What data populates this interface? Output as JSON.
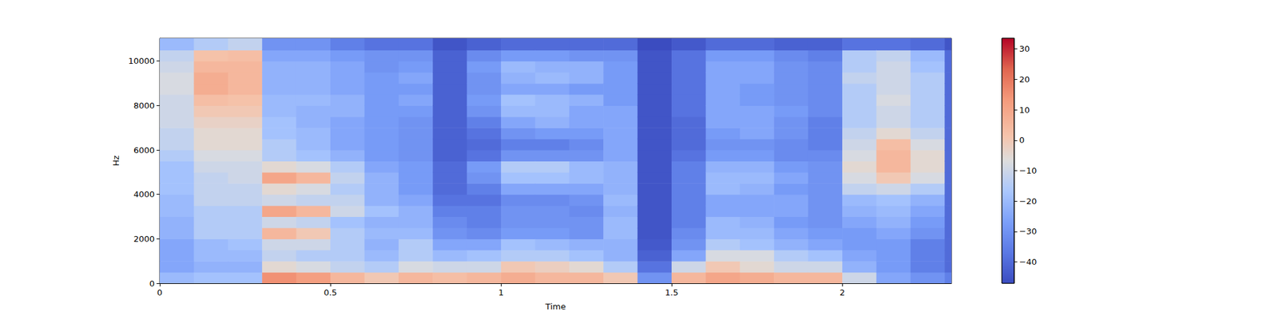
{
  "chart_data": {
    "type": "spectrogram",
    "xlabel": "Time",
    "ylabel": "Hz",
    "xlim": [
      0,
      2.32
    ],
    "xticks": [
      0,
      0.5,
      1,
      1.5,
      2
    ],
    "ylim": [
      0,
      11025
    ],
    "yticks": [
      0,
      2000,
      4000,
      6000,
      8000,
      10000
    ],
    "grid": false,
    "color": "coolwarm",
    "time_edges": [
      0,
      0.1,
      0.2,
      0.3,
      0.4,
      0.5,
      0.6,
      0.7,
      0.8,
      0.9,
      1,
      1.1,
      1.2,
      1.3,
      1.4,
      1.5,
      1.6,
      1.7,
      1.8,
      1.9,
      2,
      2.1,
      2.2,
      2.3,
      2.32
    ],
    "freq_edges": [
      0,
      500,
      1000,
      1500,
      2000,
      2500,
      3000,
      3500,
      4000,
      4500,
      5000,
      5500,
      6000,
      6500,
      7000,
      7500,
      8000,
      8500,
      9000,
      9500,
      10000,
      10500,
      11025
    ],
    "values": [
      [
        -20,
        -25,
        -25,
        -25,
        -22,
        -22,
        -20,
        -20,
        -18,
        -18,
        -18,
        -15,
        -12,
        -12,
        -10,
        -10,
        -10,
        -8,
        -8,
        -10,
        -12,
        -20
      ],
      [
        -18,
        -22,
        -20,
        -20,
        -15,
        -15,
        -15,
        -12,
        -12,
        -12,
        -10,
        -8,
        -5,
        -5,
        -3,
        0,
        3,
        8,
        8,
        5,
        2,
        -15
      ],
      [
        -18,
        -22,
        -20,
        -18,
        -15,
        -15,
        -15,
        -12,
        -12,
        -10,
        -10,
        -8,
        -5,
        -5,
        -3,
        0,
        2,
        5,
        5,
        5,
        3,
        -12
      ],
      [
        15,
        -5,
        -12,
        -10,
        5,
        -10,
        10,
        -10,
        -5,
        10,
        -5,
        -15,
        -15,
        -18,
        -18,
        -20,
        -20,
        -22,
        -22,
        -22,
        -25,
        -30
      ],
      [
        12,
        -8,
        -15,
        -10,
        0,
        -12,
        5,
        -12,
        -8,
        5,
        -8,
        -18,
        -20,
        -20,
        -22,
        -22,
        -20,
        -22,
        -22,
        -22,
        -25,
        -30
      ],
      [
        5,
        -12,
        -15,
        -15,
        -15,
        -18,
        -10,
        -12,
        -15,
        -12,
        -15,
        -22,
        -25,
        -25,
        -25,
        -22,
        -22,
        -25,
        -25,
        -25,
        -28,
        -35
      ],
      [
        0,
        -15,
        -20,
        -22,
        -20,
        -22,
        -18,
        -22,
        -22,
        -22,
        -25,
        -28,
        -28,
        -28,
        -28,
        -28,
        -28,
        -28,
        -28,
        -30,
        -30,
        -38
      ],
      [
        5,
        -8,
        -15,
        -15,
        -20,
        -22,
        -22,
        -25,
        -28,
        -28,
        -28,
        -30,
        -30,
        -30,
        -30,
        -28,
        -25,
        -28,
        -25,
        -28,
        -30,
        -38
      ],
      [
        3,
        -10,
        -20,
        -25,
        -30,
        -32,
        -35,
        -38,
        -40,
        -40,
        -40,
        -42,
        -42,
        -42,
        -42,
        -42,
        -42,
        -42,
        -42,
        -42,
        -42,
        -45
      ],
      [
        5,
        -10,
        -18,
        -25,
        -32,
        -35,
        -35,
        -38,
        -35,
        -30,
        -28,
        -38,
        -40,
        -38,
        -35,
        -30,
        -28,
        -30,
        -30,
        -28,
        -32,
        -42
      ],
      [
        8,
        0,
        -15,
        -18,
        -28,
        -30,
        -30,
        -32,
        -25,
        -18,
        -15,
        -30,
        -35,
        -30,
        -25,
        -20,
        -18,
        -25,
        -22,
        -20,
        -28,
        -40
      ],
      [
        5,
        -2,
        -15,
        -20,
        -28,
        -30,
        -30,
        -32,
        -25,
        -18,
        -15,
        -30,
        -35,
        -28,
        -22,
        -20,
        -20,
        -25,
        -20,
        -22,
        -28,
        -40
      ],
      [
        5,
        -5,
        -18,
        -22,
        -30,
        -30,
        -32,
        -30,
        -25,
        -20,
        -20,
        -30,
        -32,
        -28,
        -25,
        -25,
        -22,
        -28,
        -22,
        -22,
        -30,
        -40
      ],
      [
        0,
        -15,
        -22,
        -22,
        -20,
        -20,
        -22,
        -20,
        -22,
        -22,
        -22,
        -25,
        -25,
        -25,
        -25,
        -25,
        -28,
        -28,
        -28,
        -28,
        -30,
        -40
      ],
      [
        -30,
        -38,
        -42,
        -44,
        -45,
        -45,
        -45,
        -45,
        -45,
        -45,
        -45,
        -45,
        -45,
        -45,
        -45,
        -45,
        -45,
        -45,
        -45,
        -45,
        -45,
        -47
      ],
      [
        5,
        -10,
        -25,
        -30,
        -32,
        -35,
        -35,
        -35,
        -35,
        -35,
        -35,
        -38,
        -40,
        -40,
        -40,
        -38,
        -38,
        -38,
        -38,
        -38,
        -38,
        -44
      ],
      [
        10,
        0,
        -8,
        -15,
        -20,
        -20,
        -25,
        -25,
        -20,
        -20,
        -22,
        -28,
        -30,
        -28,
        -25,
        -25,
        -25,
        -25,
        -25,
        -25,
        -28,
        -40
      ],
      [
        8,
        -5,
        -8,
        -18,
        -20,
        -22,
        -25,
        -25,
        -22,
        -20,
        -22,
        -28,
        -30,
        -25,
        -25,
        -25,
        -28,
        -28,
        -25,
        -25,
        -28,
        -40
      ],
      [
        5,
        -10,
        -15,
        -22,
        -25,
        -28,
        -25,
        -25,
        -28,
        -25,
        -28,
        -32,
        -32,
        -30,
        -30,
        -28,
        -30,
        -30,
        -30,
        -30,
        -32,
        -42
      ],
      [
        5,
        -10,
        -18,
        -25,
        -28,
        -30,
        -30,
        -30,
        -30,
        -30,
        -30,
        -32,
        -35,
        -35,
        -35,
        -32,
        -32,
        -32,
        -32,
        -32,
        -35,
        -42
      ],
      [
        -10,
        -22,
        -25,
        -28,
        -28,
        -25,
        -22,
        -20,
        -12,
        -8,
        -5,
        -8,
        -10,
        -12,
        -15,
        -15,
        -15,
        -15,
        -12,
        -15,
        -15,
        -38
      ],
      [
        -25,
        -28,
        -28,
        -28,
        -25,
        -22,
        -20,
        -18,
        -10,
        0,
        5,
        5,
        3,
        -5,
        -10,
        -10,
        -8,
        -10,
        -10,
        -10,
        -12,
        -38
      ],
      [
        -30,
        -35,
        -35,
        -35,
        -30,
        -28,
        -25,
        -22,
        -15,
        -8,
        -5,
        -5,
        -8,
        -12,
        -15,
        -15,
        -15,
        -15,
        -15,
        -18,
        -20,
        -40
      ],
      [
        -35,
        -40,
        -40,
        -40,
        -40,
        -40,
        -40,
        -40,
        -40,
        -40,
        -40,
        -40,
        -40,
        -40,
        -40,
        -40,
        -40,
        -40,
        -40,
        -40,
        -40,
        -45
      ]
    ],
    "colorbar_range": [
      -47,
      33.5
    ],
    "colorbar_ticks": [
      {
        "value": -40,
        "label": "−40"
      },
      {
        "value": -30,
        "label": "−30"
      },
      {
        "value": -20,
        "label": "−20"
      },
      {
        "value": -10,
        "label": "−10"
      },
      0,
      10,
      20,
      30
    ]
  }
}
